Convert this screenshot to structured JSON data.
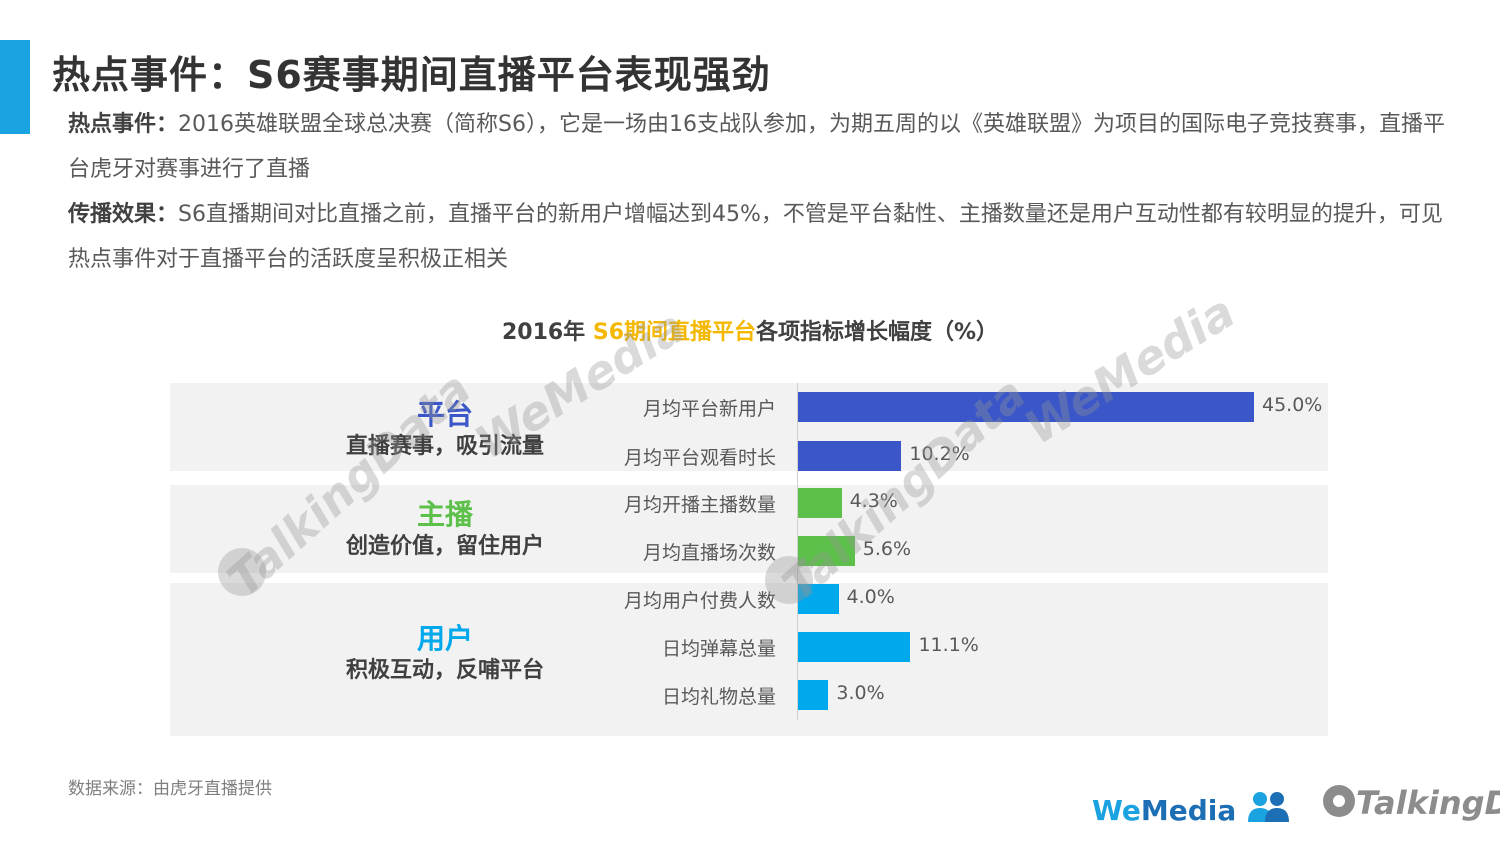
{
  "page": {
    "title": "热点事件：S6赛事期间直播平台表现强劲",
    "para1_label": "热点事件：",
    "para1_text": "2016英雄联盟全球总决赛（简称S6），它是一场由16支战队参加，为期五周的以《英雄联盟》为项目的国际电子竞技赛事，直播平台虎牙对赛事进行了直播",
    "para2_label": "传播效果：",
    "para2_text": "S6直播期间对比直播之前，直播平台的新用户增幅达到45%，不管是平台黏性、主播数量还是用户互动性都有较明显的提升，可见热点事件对于直播平台的活跃度呈积极正相关",
    "source": "数据来源：由虎牙直播提供",
    "logo_wemedia_we": "We",
    "logo_wemedia_media": "Media",
    "logo_talkingdata": "TalkingData",
    "watermark_td": "TalkingData",
    "watermark_wm": "WeMedia"
  },
  "chart_data": {
    "type": "bar",
    "orientation": "horizontal",
    "title_prefix": "2016年 ",
    "title_highlight": "S6期间直播平台",
    "title_suffix": "各项指标增长幅度（%）",
    "categories": [
      "月均平台新用户",
      "月均平台观看时长",
      "月均开播主播数量",
      "月均直播场次数",
      "月均用户付费人数",
      "日均弹幕总量",
      "日均礼物总量"
    ],
    "values": [
      45.0,
      10.2,
      4.3,
      5.6,
      4.0,
      11.1,
      3.0
    ],
    "value_labels": [
      "45.0%",
      "10.2%",
      "4.3%",
      "5.6%",
      "4.0%",
      "11.1%",
      "3.0%"
    ],
    "groups": [
      {
        "name": "平台",
        "subtitle": "直播赛事，吸引流量",
        "color": "#3a56c8",
        "indices": [
          0,
          1
        ]
      },
      {
        "name": "主播",
        "subtitle": "创造价值，留住用户",
        "color": "#5cc04a",
        "indices": [
          2,
          3
        ]
      },
      {
        "name": "用户",
        "subtitle": "积极互动，反哺平台",
        "color": "#00a8ec",
        "indices": [
          4,
          5,
          6
        ]
      }
    ],
    "xlim": [
      0,
      45.0
    ],
    "grid": false,
    "legend": "none"
  }
}
